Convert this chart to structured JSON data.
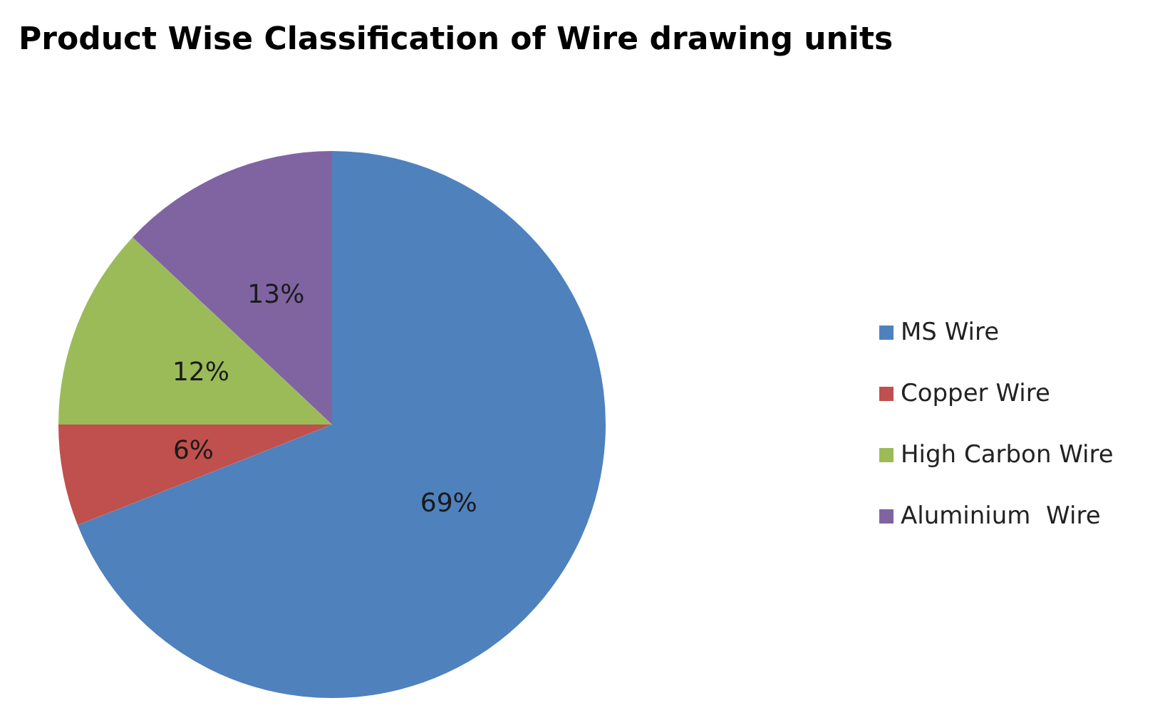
{
  "chart_data": {
    "type": "pie",
    "title": "Product Wise Classification of Wire drawing units",
    "categories": [
      "MS Wire",
      "Copper Wire",
      "High Carbon Wire",
      "Aluminium  Wire"
    ],
    "values": [
      69,
      6,
      12,
      13
    ],
    "colors": [
      "#4f81bd",
      "#c0504d",
      "#9bbb59",
      "#8064a2"
    ],
    "value_labels": [
      "69%",
      "6%",
      "12%",
      "13%"
    ],
    "legend": "right"
  }
}
